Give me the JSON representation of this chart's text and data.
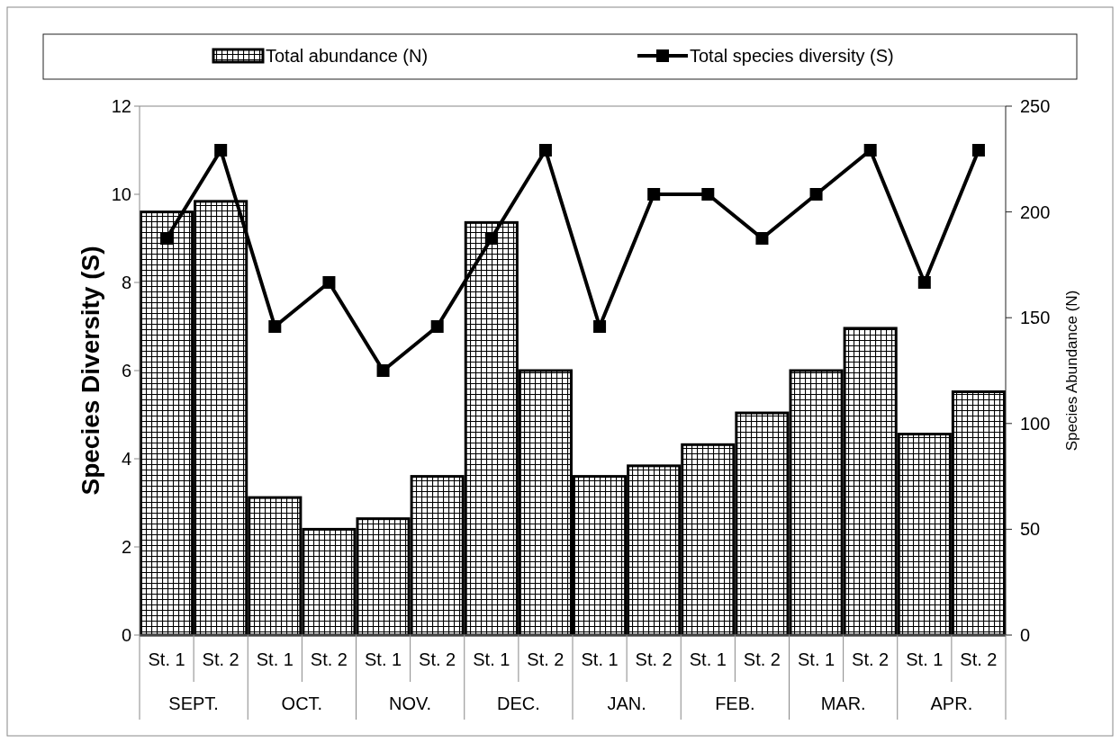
{
  "chart_data": {
    "type": "bar",
    "categories": [
      "St. 1",
      "St. 2",
      "St. 1",
      "St. 2",
      "St. 1",
      "St. 2",
      "St. 1",
      "St. 2",
      "St. 1",
      "St. 2",
      "St. 1",
      "St. 2",
      "St. 1",
      "St. 2",
      "St. 1",
      "St. 2"
    ],
    "annotations": [
      "SEPT.",
      "OCT.",
      "NOV.",
      "DEC.",
      "JAN.",
      "FEB.",
      "MAR.",
      "APR."
    ],
    "ylabel": "Species Diversity (S)",
    "y2label": "Species Abundance (N)",
    "series": [
      {
        "name": "Total abundance (N)",
        "axis": "y2",
        "color": "#000000",
        "values": [
          200,
          205,
          65,
          50,
          55,
          75,
          195,
          125,
          75,
          80,
          90,
          105,
          125,
          145,
          95,
          115
        ]
      },
      {
        "name": "Total species diversity (S)",
        "type": "line",
        "color": "#000000",
        "marker": "square",
        "values": [
          9,
          11,
          7,
          8,
          6,
          7,
          9,
          11,
          7,
          10,
          10,
          9,
          10,
          11,
          8,
          11
        ]
      }
    ],
    "ylim": [
      0,
      12
    ],
    "yticks": [
      0,
      2,
      4,
      6,
      8,
      10,
      12
    ],
    "y2lim": [
      0,
      250
    ],
    "y2ticks": [
      0,
      50,
      100,
      150,
      200,
      250
    ],
    "legend": "top",
    "grid": false
  }
}
